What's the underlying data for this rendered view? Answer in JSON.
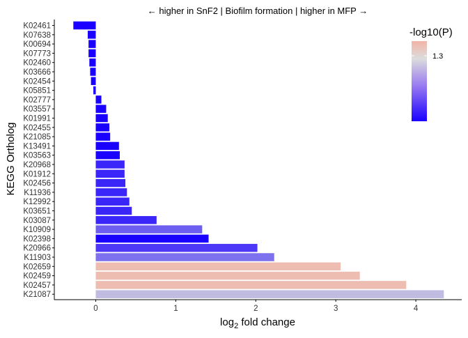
{
  "chart_data": {
    "type": "bar",
    "orientation": "horizontal",
    "title": "← higher in SnF2 | Biofilm formation | higher in MFP →",
    "xlabel_base": "log",
    "xlabel_sub": "2",
    "xlabel_rest": " fold change",
    "ylabel": "KEGG Ortholog",
    "xlim": [
      -0.5,
      4.6
    ],
    "x_ticks": [
      0,
      1,
      2,
      3,
      4
    ],
    "categories": [
      "K02461",
      "K07638",
      "K00694",
      "K07773",
      "K02460",
      "K03666",
      "K02454",
      "K05851",
      "K02777",
      "K03557",
      "K01991",
      "K02455",
      "K21085",
      "K13491",
      "K03563",
      "K20968",
      "K01912",
      "K02456",
      "K11936",
      "K12992",
      "K03651",
      "K03087",
      "K10909",
      "K02398",
      "K20966",
      "K11903",
      "K02659",
      "K02459",
      "K02457",
      "K21087"
    ],
    "values": [
      -0.28,
      -0.1,
      -0.09,
      -0.09,
      -0.08,
      -0.07,
      -0.06,
      -0.03,
      0.07,
      0.13,
      0.15,
      0.17,
      0.18,
      0.29,
      0.3,
      0.36,
      0.36,
      0.37,
      0.39,
      0.42,
      0.45,
      0.76,
      1.33,
      1.41,
      2.02,
      2.23,
      3.06,
      3.3,
      3.88,
      4.35
    ],
    "pvalue_log": [
      13,
      13,
      13,
      13,
      13,
      13,
      13,
      13,
      13,
      13,
      13,
      13,
      13,
      13,
      13,
      11,
      11,
      11,
      11,
      11,
      11,
      11,
      8,
      13,
      10,
      7,
      0.3,
      0.3,
      0.3,
      3
    ],
    "legend": {
      "title": "-log10(P)",
      "tick_label": "1.3",
      "tick_value": 1.3,
      "placement": "top-right",
      "colors": {
        "high": "#1a00ff",
        "mid": "#dcdcdc",
        "low": "#f2b4a6"
      }
    },
    "grid": false
  }
}
